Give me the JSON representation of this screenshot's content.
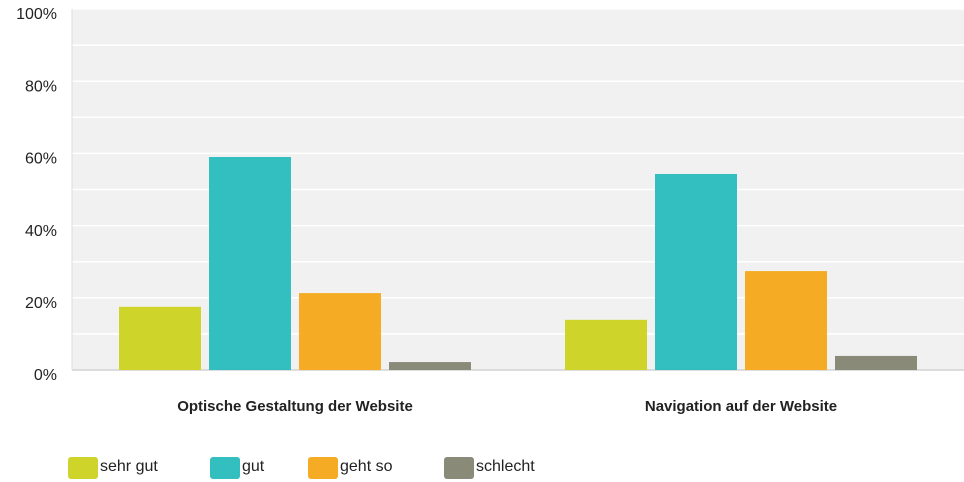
{
  "chart_data": {
    "type": "bar",
    "categories": [
      "Optische Gestaltung der Website",
      "Navigation auf der Website"
    ],
    "series": [
      {
        "name": "sehr gut",
        "color": "#cfd42a",
        "values": [
          17.5,
          13.9
        ]
      },
      {
        "name": "gut",
        "color": "#33bfbf",
        "values": [
          59,
          54.3
        ]
      },
      {
        "name": "geht so",
        "color": "#f5ab23",
        "values": [
          21.3,
          27.4
        ]
      },
      {
        "name": "schlecht",
        "color": "#8a8a78",
        "values": [
          2.2,
          3.9
        ]
      }
    ],
    "ylim": [
      0,
      100
    ],
    "yticks": [
      {
        "value": 0,
        "label": "0%"
      },
      {
        "value": 20,
        "label": "20%"
      },
      {
        "value": 40,
        "label": "40%"
      },
      {
        "value": 60,
        "label": "60%"
      },
      {
        "value": 80,
        "label": "80%"
      },
      {
        "value": 100,
        "label": "100%"
      }
    ],
    "minor_yticks": [
      10,
      30,
      50,
      70,
      90
    ],
    "grid": true,
    "legend": "bottom"
  }
}
